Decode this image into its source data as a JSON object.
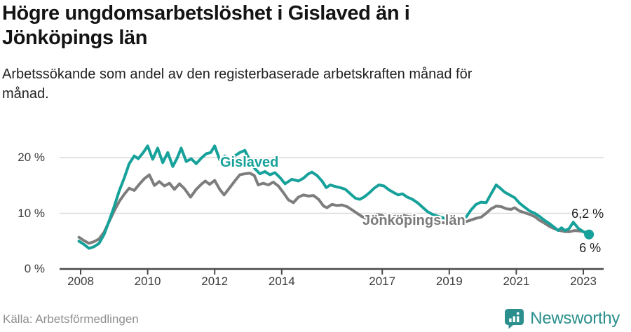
{
  "header": {
    "title": "Högre ungdomsarbetslöshet i Gislaved än i Jönköpings län",
    "title_lines": [
      "Högre ungdomsarbetslöshet i Gislaved än i",
      "Jönköpings län"
    ],
    "subtitle": "Arbetssökande som andel av den registerbaserade arbetskraften månad för månad.",
    "subtitle_lines": [
      "Arbetssökande som andel av den registerbaserade arbetskraften månad för",
      "månad."
    ]
  },
  "footer": {
    "source": "Källa: Arbetsförmedlingen",
    "brand": "Newsworthy"
  },
  "colors": {
    "gislaved_teal": "#16a19a",
    "jonkoping_gray": "#7d7d7d",
    "axis": "#4a4a4a",
    "gridline": "#dadada",
    "logo_teal": "#2b8f8d"
  },
  "chart_data": {
    "type": "line",
    "title": "Högre ungdomsarbetslöshet i Gislaved än i Jönköpings län",
    "xlabel": "",
    "ylabel": "",
    "unit": "%",
    "grid": "horizontal",
    "legend_position": "inline-labels",
    "x_axis": {
      "range": [
        2007.9,
        2023.6
      ],
      "ticks": [
        {
          "value": 2008,
          "label": "2008"
        },
        {
          "value": 2010,
          "label": "2010"
        },
        {
          "value": 2012,
          "label": "2012"
        },
        {
          "value": 2014,
          "label": "2014"
        },
        {
          "value": 2017,
          "label": "2017"
        },
        {
          "value": 2019,
          "label": "2019"
        },
        {
          "value": 2021,
          "label": "2021"
        },
        {
          "value": 2023,
          "label": "2023"
        }
      ]
    },
    "y_axis": {
      "range": [
        0,
        23.5
      ],
      "ticks": [
        {
          "value": 20,
          "label": "20 %"
        },
        {
          "value": 10,
          "label": "10 %"
        },
        {
          "value": 0,
          "label": "0 %"
        }
      ]
    },
    "series": [
      {
        "id": "gislaved",
        "name": "Gislaved",
        "color": "#16a19a",
        "end_label": "6,2 %",
        "end_value": 6.2,
        "points": [
          [
            2007.95,
            5.0
          ],
          [
            2008.1,
            4.4
          ],
          [
            2008.25,
            3.7
          ],
          [
            2008.4,
            4.0
          ],
          [
            2008.55,
            4.6
          ],
          [
            2008.7,
            6.2
          ],
          [
            2008.85,
            8.6
          ],
          [
            2009.0,
            11.2
          ],
          [
            2009.15,
            14.0
          ],
          [
            2009.3,
            16.3
          ],
          [
            2009.45,
            18.9
          ],
          [
            2009.6,
            20.3
          ],
          [
            2009.72,
            19.8
          ],
          [
            2009.88,
            21.0
          ],
          [
            2010.0,
            22.1
          ],
          [
            2010.15,
            19.7
          ],
          [
            2010.3,
            21.7
          ],
          [
            2010.45,
            19.1
          ],
          [
            2010.6,
            20.9
          ],
          [
            2010.75,
            18.4
          ],
          [
            2010.88,
            19.9
          ],
          [
            2011.0,
            21.7
          ],
          [
            2011.15,
            19.3
          ],
          [
            2011.3,
            19.8
          ],
          [
            2011.45,
            18.9
          ],
          [
            2011.6,
            19.9
          ],
          [
            2011.75,
            20.7
          ],
          [
            2011.88,
            20.9
          ],
          [
            2012.0,
            22.1
          ],
          [
            2012.15,
            19.6
          ],
          [
            2012.3,
            20.3
          ],
          [
            2012.45,
            19.8
          ],
          [
            2012.6,
            20.3
          ],
          [
            2012.75,
            20.9
          ],
          [
            2012.9,
            21.3
          ],
          [
            2013.05,
            19.5
          ],
          [
            2013.2,
            18.0
          ],
          [
            2013.35,
            17.1
          ],
          [
            2013.5,
            17.5
          ],
          [
            2013.65,
            16.9
          ],
          [
            2013.8,
            17.3
          ],
          [
            2013.95,
            16.4
          ],
          [
            2014.1,
            15.3
          ],
          [
            2014.3,
            16.1
          ],
          [
            2014.5,
            15.8
          ],
          [
            2014.65,
            16.3
          ],
          [
            2014.78,
            17.0
          ],
          [
            2014.9,
            17.4
          ],
          [
            2015.05,
            16.8
          ],
          [
            2015.2,
            15.8
          ],
          [
            2015.33,
            14.6
          ],
          [
            2015.45,
            15.1
          ],
          [
            2015.6,
            14.8
          ],
          [
            2015.75,
            14.6
          ],
          [
            2015.9,
            14.3
          ],
          [
            2016.05,
            13.5
          ],
          [
            2016.2,
            12.7
          ],
          [
            2016.33,
            12.5
          ],
          [
            2016.48,
            13.0
          ],
          [
            2016.62,
            13.7
          ],
          [
            2016.76,
            14.5
          ],
          [
            2016.9,
            15.1
          ],
          [
            2017.05,
            14.9
          ],
          [
            2017.2,
            14.2
          ],
          [
            2017.35,
            13.7
          ],
          [
            2017.48,
            13.3
          ],
          [
            2017.6,
            13.5
          ],
          [
            2017.75,
            12.9
          ],
          [
            2017.9,
            12.5
          ],
          [
            2018.05,
            11.9
          ],
          [
            2018.2,
            11.1
          ],
          [
            2018.35,
            10.3
          ],
          [
            2018.5,
            9.8
          ],
          [
            2018.7,
            9.4
          ],
          [
            2018.9,
            9.0
          ],
          [
            2019.1,
            8.9
          ],
          [
            2019.3,
            9.0
          ],
          [
            2019.5,
            9.3
          ],
          [
            2019.65,
            10.6
          ],
          [
            2019.8,
            11.6
          ],
          [
            2019.95,
            12.0
          ],
          [
            2020.1,
            11.9
          ],
          [
            2020.25,
            13.5
          ],
          [
            2020.4,
            15.1
          ],
          [
            2020.52,
            14.5
          ],
          [
            2020.65,
            13.8
          ],
          [
            2020.8,
            13.3
          ],
          [
            2020.95,
            12.8
          ],
          [
            2021.1,
            11.8
          ],
          [
            2021.25,
            11.1
          ],
          [
            2021.4,
            10.4
          ],
          [
            2021.55,
            10.0
          ],
          [
            2021.7,
            9.4
          ],
          [
            2021.85,
            8.7
          ],
          [
            2022.0,
            8.1
          ],
          [
            2022.13,
            7.5
          ],
          [
            2022.25,
            6.9
          ],
          [
            2022.35,
            7.4
          ],
          [
            2022.45,
            6.9
          ],
          [
            2022.57,
            7.2
          ],
          [
            2022.7,
            8.4
          ],
          [
            2022.85,
            7.3
          ],
          [
            2023.0,
            6.7
          ],
          [
            2023.17,
            6.2
          ]
        ]
      },
      {
        "id": "jonkopings-lan",
        "name": "Jönköpings län",
        "color": "#7d7d7d",
        "end_label": "6 %",
        "end_value": 6.0,
        "points": [
          [
            2007.95,
            5.7
          ],
          [
            2008.1,
            5.1
          ],
          [
            2008.25,
            4.6
          ],
          [
            2008.4,
            4.9
          ],
          [
            2008.55,
            5.4
          ],
          [
            2008.7,
            6.6
          ],
          [
            2008.85,
            8.5
          ],
          [
            2009.0,
            10.4
          ],
          [
            2009.15,
            12.1
          ],
          [
            2009.3,
            13.4
          ],
          [
            2009.45,
            14.5
          ],
          [
            2009.6,
            14.1
          ],
          [
            2009.75,
            15.2
          ],
          [
            2009.9,
            16.2
          ],
          [
            2010.05,
            16.9
          ],
          [
            2010.2,
            15.0
          ],
          [
            2010.35,
            15.7
          ],
          [
            2010.5,
            14.9
          ],
          [
            2010.65,
            15.4
          ],
          [
            2010.8,
            14.3
          ],
          [
            2010.95,
            15.3
          ],
          [
            2011.1,
            14.4
          ],
          [
            2011.28,
            12.9
          ],
          [
            2011.45,
            14.3
          ],
          [
            2011.6,
            15.2
          ],
          [
            2011.72,
            15.8
          ],
          [
            2011.85,
            15.2
          ],
          [
            2012.0,
            15.9
          ],
          [
            2012.15,
            14.3
          ],
          [
            2012.28,
            13.3
          ],
          [
            2012.45,
            14.6
          ],
          [
            2012.6,
            15.8
          ],
          [
            2012.75,
            16.9
          ],
          [
            2012.9,
            17.1
          ],
          [
            2013.05,
            17.2
          ],
          [
            2013.18,
            16.8
          ],
          [
            2013.3,
            15.1
          ],
          [
            2013.45,
            15.4
          ],
          [
            2013.6,
            15.1
          ],
          [
            2013.75,
            15.6
          ],
          [
            2013.9,
            14.9
          ],
          [
            2014.05,
            13.7
          ],
          [
            2014.2,
            12.4
          ],
          [
            2014.35,
            11.9
          ],
          [
            2014.5,
            12.9
          ],
          [
            2014.65,
            13.3
          ],
          [
            2014.8,
            13.1
          ],
          [
            2014.95,
            13.2
          ],
          [
            2015.1,
            12.5
          ],
          [
            2015.25,
            11.3
          ],
          [
            2015.35,
            11.0
          ],
          [
            2015.5,
            11.6
          ],
          [
            2015.65,
            11.4
          ],
          [
            2015.8,
            11.5
          ],
          [
            2015.95,
            11.2
          ],
          [
            2016.1,
            10.6
          ],
          [
            2016.25,
            10.0
          ],
          [
            2016.4,
            9.4
          ],
          [
            2016.55,
            9.0
          ],
          [
            2016.7,
            9.4
          ],
          [
            2016.85,
            9.8
          ],
          [
            2017.0,
            9.6
          ],
          [
            2017.1,
            9.1
          ],
          [
            2017.2,
            8.7
          ],
          [
            2017.35,
            9.4
          ],
          [
            2017.5,
            9.7
          ],
          [
            2017.65,
            9.6
          ],
          [
            2017.8,
            9.4
          ],
          [
            2018.0,
            9.3
          ],
          [
            2018.2,
            9.0
          ],
          [
            2018.4,
            8.8
          ],
          [
            2018.6,
            8.5
          ],
          [
            2018.8,
            8.3
          ],
          [
            2019.0,
            8.2
          ],
          [
            2019.2,
            8.2
          ],
          [
            2019.4,
            8.3
          ],
          [
            2019.6,
            8.7
          ],
          [
            2019.8,
            9.1
          ],
          [
            2019.95,
            9.3
          ],
          [
            2020.1,
            10.0
          ],
          [
            2020.25,
            10.8
          ],
          [
            2020.4,
            11.3
          ],
          [
            2020.55,
            11.2
          ],
          [
            2020.7,
            10.8
          ],
          [
            2020.85,
            10.7
          ],
          [
            2020.95,
            11.0
          ],
          [
            2021.1,
            10.4
          ],
          [
            2021.25,
            10.1
          ],
          [
            2021.4,
            9.8
          ],
          [
            2021.55,
            9.4
          ],
          [
            2021.7,
            8.7
          ],
          [
            2021.85,
            8.2
          ],
          [
            2022.0,
            7.6
          ],
          [
            2022.15,
            7.2
          ],
          [
            2022.3,
            6.9
          ],
          [
            2022.45,
            6.7
          ],
          [
            2022.6,
            6.7
          ],
          [
            2022.75,
            6.9
          ],
          [
            2022.9,
            6.8
          ],
          [
            2023.0,
            6.7
          ],
          [
            2023.17,
            6.0
          ]
        ]
      }
    ]
  }
}
